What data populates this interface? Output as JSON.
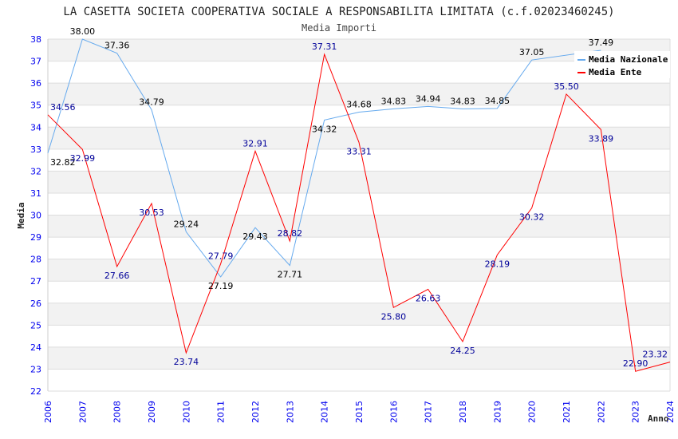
{
  "chart_data": {
    "type": "line",
    "title": "LA CASETTA SOCIETA COOPERATIVA SOCIALE A RESPONSABILITA LIMITATA (c.f.02023460245)",
    "subtitle": "Media Importi",
    "xlabel": "Anno",
    "ylabel": "Media",
    "ylim": [
      22,
      38
    ],
    "xlim": [
      2006,
      2024
    ],
    "x": [
      2006,
      2007,
      2008,
      2009,
      2010,
      2011,
      2012,
      2013,
      2014,
      2015,
      2016,
      2017,
      2018,
      2019,
      2020,
      2021,
      2022,
      2023,
      2024
    ],
    "legend_position": "top-right",
    "series": [
      {
        "name": "Media Nazionale",
        "color": "#66aaee",
        "label_color": "#000000",
        "values": [
          32.82,
          38.0,
          37.36,
          34.79,
          29.24,
          27.19,
          29.43,
          27.71,
          34.32,
          34.68,
          34.83,
          34.94,
          34.83,
          34.85,
          37.05,
          null,
          37.49,
          null,
          null
        ]
      },
      {
        "name": "Media Ente",
        "color": "#ff0000",
        "label_color": "#000099",
        "values": [
          34.56,
          32.99,
          27.66,
          30.53,
          23.74,
          27.79,
          32.91,
          28.82,
          37.31,
          33.31,
          25.8,
          26.63,
          24.25,
          28.19,
          30.32,
          35.5,
          33.89,
          22.9,
          23.32
        ]
      }
    ]
  }
}
